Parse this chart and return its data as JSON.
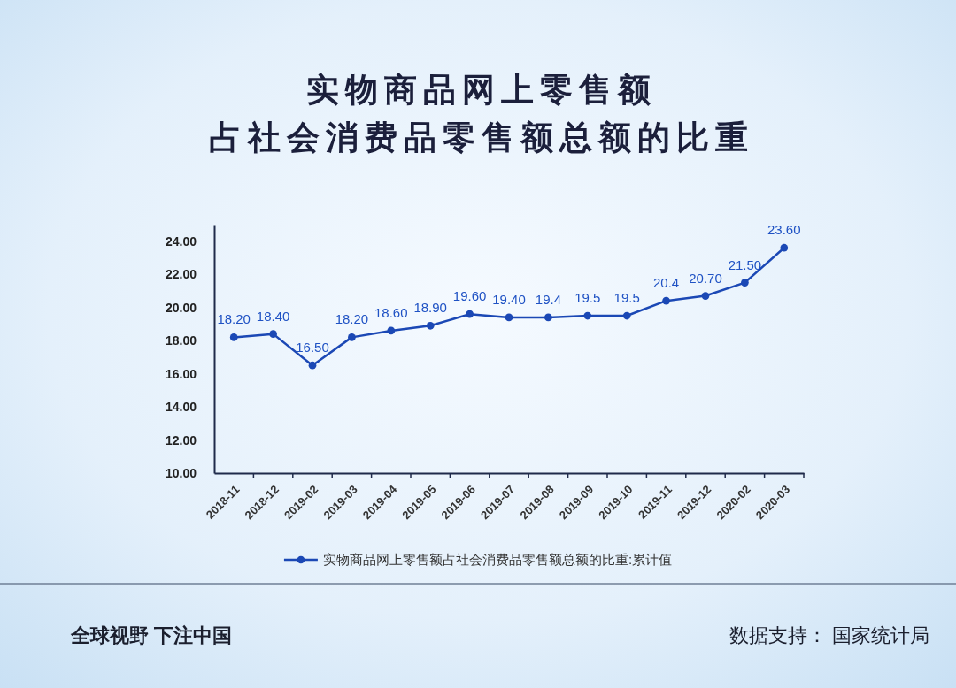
{
  "chart_data": {
    "type": "line",
    "title": "实物商品网上零售额",
    "subtitle": "占社会消费品零售额总额的比重",
    "categories": [
      "2018-11",
      "2018-12",
      "2019-02",
      "2019-03",
      "2019-04",
      "2019-05",
      "2019-06",
      "2019-07",
      "2019-08",
      "2019-09",
      "2019-10",
      "2019-11",
      "2019-12",
      "2020-02",
      "2020-03"
    ],
    "series": [
      {
        "name": "实物商品网上零售额占社会消费品零售额总额的比重:累计值",
        "color": "#1b48b5",
        "values": [
          18.2,
          18.4,
          16.5,
          18.2,
          18.6,
          18.9,
          19.6,
          19.4,
          19.4,
          19.5,
          19.5,
          20.4,
          20.7,
          21.5,
          23.6
        ],
        "value_labels": [
          "18.20",
          "18.40",
          "16.50",
          "18.20",
          "18.60",
          "18.90",
          "19.60",
          "19.40",
          "19.4",
          "19.5",
          "19.5",
          "20.4",
          "20.70",
          "21.50",
          "23.60"
        ]
      }
    ],
    "ylim": [
      10,
      25
    ],
    "yticks": [
      {
        "value": 10,
        "label": "10.00"
      },
      {
        "value": 12,
        "label": "12.00"
      },
      {
        "value": 14,
        "label": "14.00"
      },
      {
        "value": 16,
        "label": "16.00"
      },
      {
        "value": 18,
        "label": "18.00"
      },
      {
        "value": 20,
        "label": "20.00"
      },
      {
        "value": 22,
        "label": "22.00"
      },
      {
        "value": 24,
        "label": "24.00"
      }
    ],
    "legend": "bottom",
    "marker": "circle",
    "line_style": "solid",
    "annotations": [
      "全球视野 下注中国",
      "数据支持： 国家统计局"
    ]
  }
}
